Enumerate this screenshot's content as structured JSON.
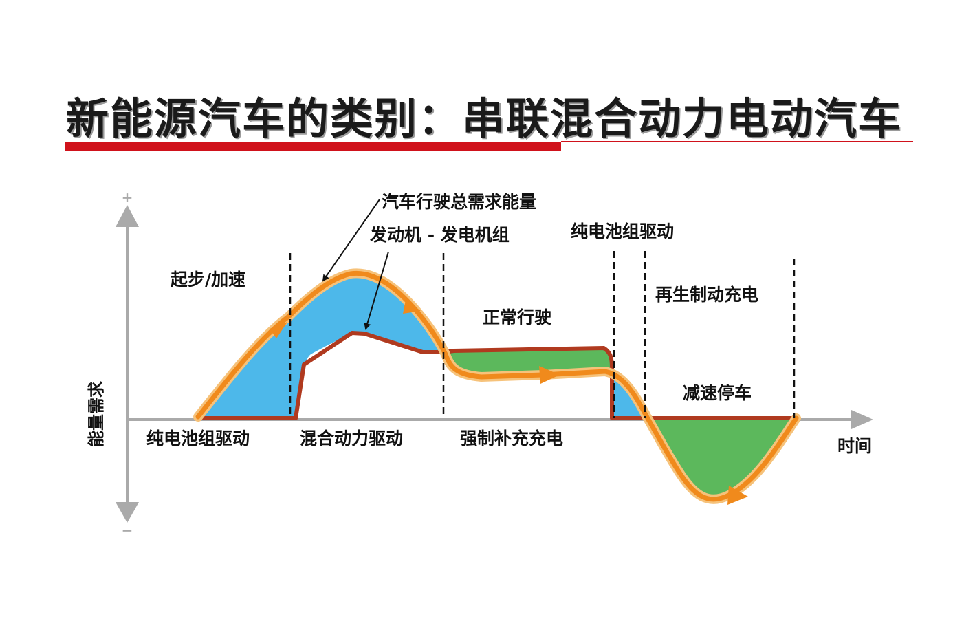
{
  "title": "新能源汽车的类别：串联混合动力电动汽车",
  "axes": {
    "y_label": "能量需求",
    "x_label": "时间",
    "y_plus": "+",
    "y_minus": "−"
  },
  "annotations": {
    "total_energy": "汽车行驶总需求能量",
    "engine_generator": "发动机 - 发电机组"
  },
  "phases_top": {
    "start_accel": "起步/加速",
    "normal_drive": "正常行驶",
    "battery_drive": "纯电池组驱动",
    "regen_charge": "再生制动充电",
    "decel_stop": "减速停车"
  },
  "phases_bottom": {
    "battery_drive": "纯电池组驱动",
    "hybrid_drive": "混合动力驱动",
    "forced_charge": "强制补充充电"
  },
  "colors": {
    "title_accent": "#d0121b",
    "battery_fill": "#4db8ea",
    "charge_fill": "#5cb85c",
    "engine_line": "#b03a1f",
    "demand_curve": "#f08a1c",
    "axis": "#aaaaaa"
  }
}
